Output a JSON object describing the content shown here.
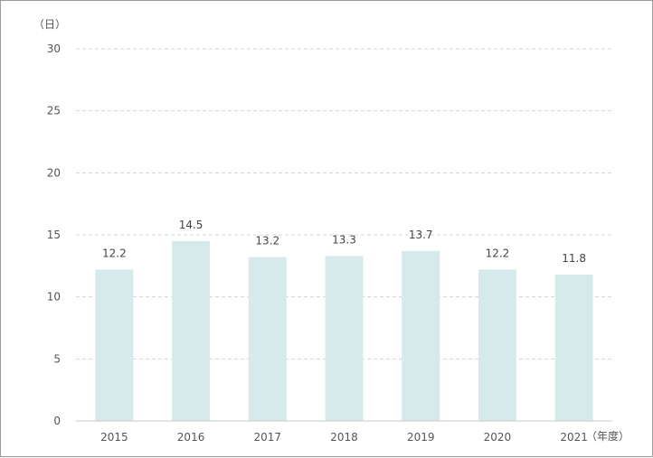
{
  "chart_data": {
    "type": "bar",
    "categories": [
      "2015",
      "2016",
      "2017",
      "2018",
      "2019",
      "2020",
      "2021"
    ],
    "values": [
      12.2,
      14.5,
      13.2,
      13.3,
      13.7,
      12.2,
      11.8
    ],
    "value_labels": [
      "12.2",
      "14.5",
      "13.2",
      "13.3",
      "13.7",
      "12.2",
      "11.8"
    ],
    "y_unit_label": "（日）",
    "x_unit_label": "（年度）",
    "ylim": [
      0,
      30
    ],
    "y_ticks": [
      0,
      5,
      10,
      15,
      20,
      25,
      30
    ],
    "grid": true,
    "legend": "none",
    "bar_color": "#d6eaeb",
    "grid_color": "#d4d4d4"
  }
}
